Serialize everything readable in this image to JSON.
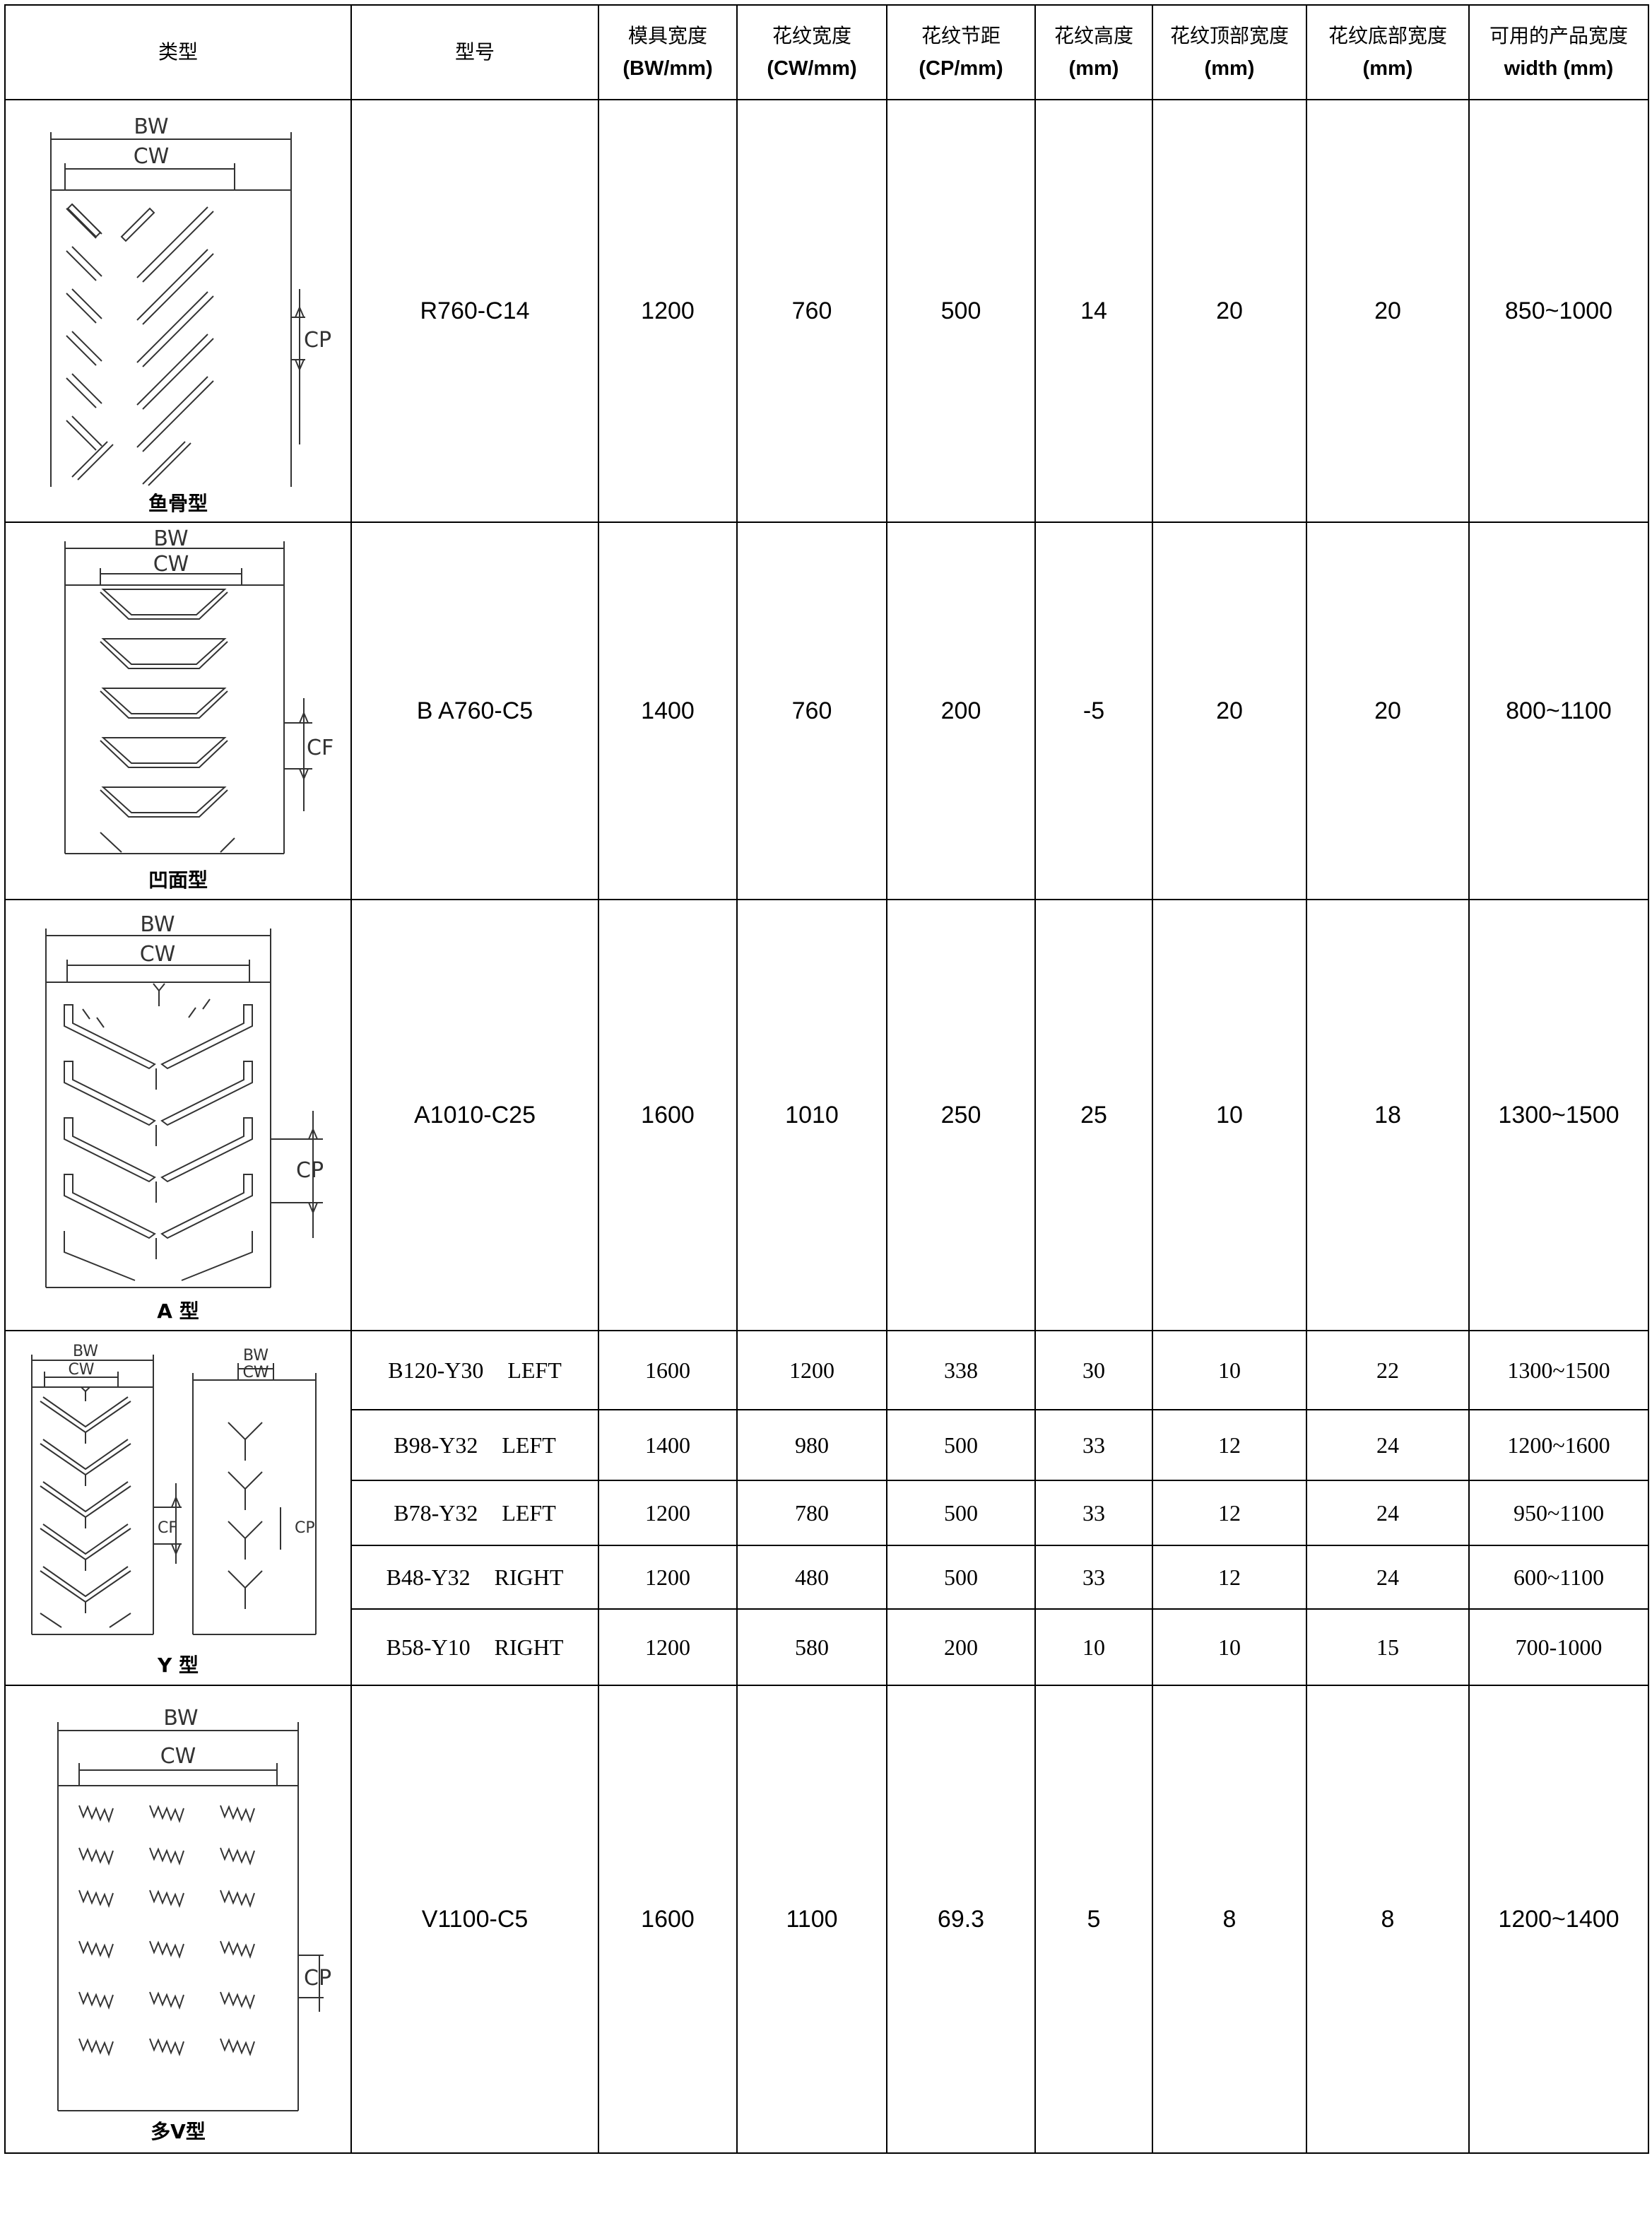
{
  "headers": {
    "type": "类型",
    "model": "型号",
    "bw": {
      "zh": "模具宽度",
      "en": "(BW/mm)"
    },
    "cw": {
      "zh": "花纹宽度",
      "en": "(CW/mm)"
    },
    "cp": {
      "zh": "花纹节距",
      "en": "(CP/mm)"
    },
    "height": {
      "zh": "花纹高度",
      "en": "(mm)"
    },
    "top": {
      "zh": "花纹顶部宽度",
      "en": "(mm)"
    },
    "bottom": {
      "zh": "花纹底部宽度",
      "en": "(mm)"
    },
    "usable": {
      "zh": "可用的产品宽度",
      "en": "width (mm)"
    }
  },
  "diagram_labels": {
    "bw": "BW",
    "cw": "CW",
    "cp": "CP",
    "cf": "CF"
  },
  "groups": [
    {
      "type_name": "鱼骨型",
      "rows": [
        {
          "model": "R760-C14",
          "bw": "1200",
          "cw": "760",
          "cp": "500",
          "height": "14",
          "top": "20",
          "bottom": "20",
          "usable": "850~1000"
        }
      ]
    },
    {
      "type_name": "凹面型",
      "rows": [
        {
          "model": "B A760-C5",
          "bw": "1400",
          "cw": "760",
          "cp": "200",
          "height": "-5",
          "top": "20",
          "bottom": "20",
          "usable": "800~1100"
        }
      ]
    },
    {
      "type_name": "A 型",
      "rows": [
        {
          "model": "A1010-C25",
          "bw": "1600",
          "cw": "1010",
          "cp": "250",
          "height": "25",
          "top": "10",
          "bottom": "18",
          "usable": "1300~1500"
        }
      ]
    },
    {
      "type_name": "Y 型",
      "rows": [
        {
          "model": "B120-Y30",
          "side": "LEFT",
          "bw": "1600",
          "cw": "1200",
          "cp": "338",
          "height": "30",
          "top": "10",
          "bottom": "22",
          "usable": "1300~1500"
        },
        {
          "model": "B98-Y32",
          "side": "LEFT",
          "bw": "1400",
          "cw": "980",
          "cp": "500",
          "height": "33",
          "top": "12",
          "bottom": "24",
          "usable": "1200~1600"
        },
        {
          "model": "B78-Y32",
          "side": "LEFT",
          "bw": "1200",
          "cw": "780",
          "cp": "500",
          "height": "33",
          "top": "12",
          "bottom": "24",
          "usable": "950~1100"
        },
        {
          "model": "B48-Y32",
          "side": "RIGHT",
          "bw": "1200",
          "cw": "480",
          "cp": "500",
          "height": "33",
          "top": "12",
          "bottom": "24",
          "usable": "600~1100"
        },
        {
          "model": "B58-Y10",
          "side": "RIGHT",
          "bw": "1200",
          "cw": "580",
          "cp": "200",
          "height": "10",
          "top": "10",
          "bottom": "15",
          "usable": "700-1000"
        }
      ]
    },
    {
      "type_name": "多V型",
      "rows": [
        {
          "model": "V1100-C5",
          "bw": "1600",
          "cw": "1100",
          "cp": "69.3",
          "height": "5",
          "top": "8",
          "bottom": "8",
          "usable": "1200~1400"
        }
      ]
    }
  ]
}
